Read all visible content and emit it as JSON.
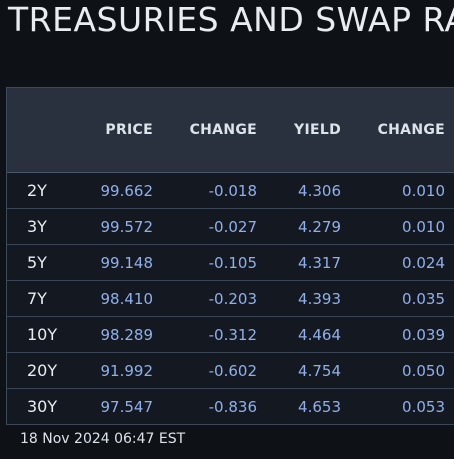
{
  "title": "TREASURIES AND SWAP RA",
  "table": {
    "headers": [
      "",
      "PRICE",
      "CHANGE",
      "YIELD",
      "CHANGE"
    ],
    "rows": [
      {
        "tenor": "2Y",
        "price": "99.662",
        "price_change": "-0.018",
        "yield": "4.306",
        "yield_change": "0.010"
      },
      {
        "tenor": "3Y",
        "price": "99.572",
        "price_change": "-0.027",
        "yield": "4.279",
        "yield_change": "0.010"
      },
      {
        "tenor": "5Y",
        "price": "99.148",
        "price_change": "-0.105",
        "yield": "4.317",
        "yield_change": "0.024"
      },
      {
        "tenor": "7Y",
        "price": "98.410",
        "price_change": "-0.203",
        "yield": "4.393",
        "yield_change": "0.035"
      },
      {
        "tenor": "10Y",
        "price": "98.289",
        "price_change": "-0.312",
        "yield": "4.464",
        "yield_change": "0.039"
      },
      {
        "tenor": "20Y",
        "price": "91.992",
        "price_change": "-0.602",
        "yield": "4.754",
        "yield_change": "0.050"
      },
      {
        "tenor": "30Y",
        "price": "97.547",
        "price_change": "-0.836",
        "yield": "4.653",
        "yield_change": "0.053"
      }
    ]
  },
  "footer": {
    "timestamp": "18 Nov 2024 06:47 EST"
  },
  "colors": {
    "background": "#0e1116",
    "header_bg": "#28313d",
    "value_text": "#8fb0ec",
    "label_text": "#e9edf2"
  }
}
